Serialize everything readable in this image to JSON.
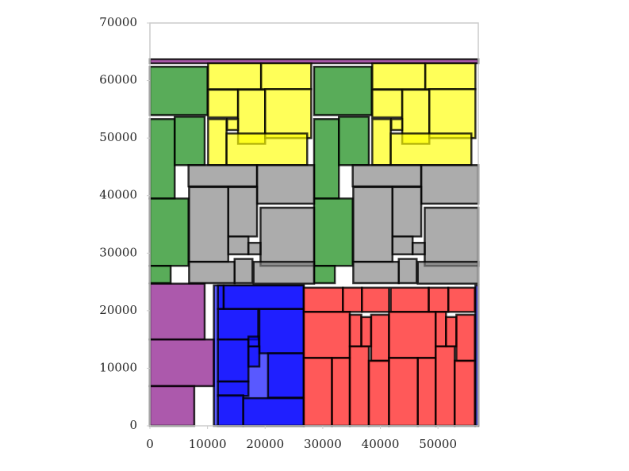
{
  "chart_data": {
    "type": "rect",
    "xlim": [
      0,
      57000
    ],
    "ylim": [
      0,
      70000
    ],
    "xticks": [
      0,
      10000,
      20000,
      30000,
      40000,
      50000
    ],
    "yticks": [
      0,
      10000,
      20000,
      30000,
      40000,
      50000,
      60000,
      70000
    ],
    "alpha": 0.65,
    "edge_color": "#000000",
    "groups": [
      {
        "color": "#800080",
        "rects": [
          [
            0,
            63000,
            57000,
            63700
          ],
          [
            0,
            15000,
            9500,
            24700
          ],
          [
            0,
            6900,
            11100,
            15000
          ],
          [
            0,
            0,
            7700,
            6900
          ]
        ]
      },
      {
        "color": "#0000ff",
        "rects": [
          [
            11100,
            0,
            26700,
            24400
          ],
          [
            56500,
            0,
            57000,
            24400
          ],
          [
            11800,
            20300,
            12800,
            24400
          ],
          [
            12800,
            20300,
            26700,
            24400
          ],
          [
            11800,
            15000,
            18800,
            20300
          ],
          [
            19000,
            12600,
            26700,
            20300
          ],
          [
            11800,
            7700,
            17100,
            15000
          ],
          [
            17100,
            10300,
            19000,
            13800
          ],
          [
            17100,
            13800,
            18900,
            15500
          ],
          [
            20500,
            4900,
            26700,
            12600
          ],
          [
            11800,
            5200,
            17100,
            7700
          ],
          [
            11800,
            0,
            16200,
            5300
          ],
          [
            16200,
            0,
            26700,
            4800
          ]
        ]
      },
      {
        "color": "#ff0000",
        "rects": [
          [
            26700,
            19800,
            33500,
            24000
          ],
          [
            33500,
            19800,
            36800,
            24000
          ],
          [
            36800,
            19800,
            41500,
            24000
          ],
          [
            41800,
            19800,
            48400,
            24000
          ],
          [
            48400,
            19800,
            51800,
            24000
          ],
          [
            51800,
            19800,
            56400,
            24000
          ],
          [
            26700,
            11800,
            34700,
            19800
          ],
          [
            34700,
            13800,
            36700,
            19300
          ],
          [
            36700,
            13800,
            38400,
            18900
          ],
          [
            38400,
            11300,
            41500,
            19300
          ],
          [
            41500,
            11800,
            49600,
            19800
          ],
          [
            49600,
            13800,
            51400,
            19800
          ],
          [
            51400,
            13800,
            53200,
            18900
          ],
          [
            53200,
            11300,
            56400,
            19300
          ],
          [
            26700,
            0,
            31600,
            11800
          ],
          [
            31600,
            0,
            34700,
            11800
          ],
          [
            34700,
            0,
            38000,
            13800
          ],
          [
            38000,
            0,
            41500,
            11300
          ],
          [
            41500,
            0,
            46500,
            11800
          ],
          [
            46500,
            0,
            49600,
            11800
          ],
          [
            49600,
            0,
            52900,
            13800
          ],
          [
            52900,
            0,
            56400,
            11300
          ]
        ]
      },
      {
        "color": "#008000",
        "rects": [
          [
            0,
            54000,
            10000,
            62400
          ],
          [
            0,
            39500,
            4300,
            53300
          ],
          [
            4300,
            45300,
            9500,
            53700
          ],
          [
            0,
            27800,
            6700,
            39500
          ],
          [
            0,
            24800,
            3600,
            27800
          ],
          [
            28500,
            54000,
            38500,
            62400
          ],
          [
            28500,
            39500,
            32800,
            53300
          ],
          [
            32800,
            45300,
            38000,
            53700
          ],
          [
            28500,
            27800,
            35200,
            39500
          ],
          [
            28500,
            24800,
            32100,
            27800
          ]
        ]
      },
      {
        "color": "#ffff00",
        "rects": [
          [
            10100,
            58500,
            19300,
            63000
          ],
          [
            19300,
            58500,
            28000,
            63000
          ],
          [
            10100,
            53600,
            15300,
            58400
          ],
          [
            15300,
            49000,
            20000,
            58400
          ],
          [
            20000,
            50000,
            28000,
            58500
          ],
          [
            10100,
            45300,
            13300,
            53300
          ],
          [
            13300,
            45300,
            27300,
            50800
          ],
          [
            13400,
            51400,
            15300,
            53300
          ],
          [
            38600,
            58500,
            47800,
            63000
          ],
          [
            47800,
            58500,
            56500,
            63000
          ],
          [
            38600,
            53600,
            43800,
            58400
          ],
          [
            43800,
            49000,
            48500,
            58400
          ],
          [
            48500,
            50000,
            56500,
            58500
          ],
          [
            38600,
            45300,
            41800,
            53300
          ],
          [
            41800,
            45300,
            55800,
            50800
          ],
          [
            41900,
            51400,
            43800,
            53300
          ]
        ]
      },
      {
        "color": "#808080",
        "rects": [
          [
            6700,
            41600,
            18600,
            45300
          ],
          [
            18600,
            38600,
            28500,
            45300
          ],
          [
            6800,
            28500,
            13600,
            41500
          ],
          [
            13600,
            32900,
            18600,
            41500
          ],
          [
            19200,
            27800,
            28500,
            37900
          ],
          [
            13600,
            29800,
            17100,
            32900
          ],
          [
            17100,
            29800,
            19200,
            31800
          ],
          [
            6800,
            24800,
            14700,
            28500
          ],
          [
            14700,
            24800,
            17800,
            29000
          ],
          [
            18000,
            24700,
            28500,
            28500
          ],
          [
            35200,
            41600,
            47100,
            45300
          ],
          [
            47100,
            38600,
            57000,
            45300
          ],
          [
            35300,
            28500,
            42100,
            41500
          ],
          [
            42100,
            32900,
            47100,
            41500
          ],
          [
            47700,
            27800,
            57000,
            37900
          ],
          [
            42100,
            29800,
            45600,
            32900
          ],
          [
            45600,
            29800,
            47700,
            31800
          ],
          [
            35300,
            24800,
            43200,
            28500
          ],
          [
            43200,
            24800,
            46300,
            29000
          ],
          [
            46500,
            24700,
            57000,
            28500
          ]
        ]
      }
    ]
  }
}
